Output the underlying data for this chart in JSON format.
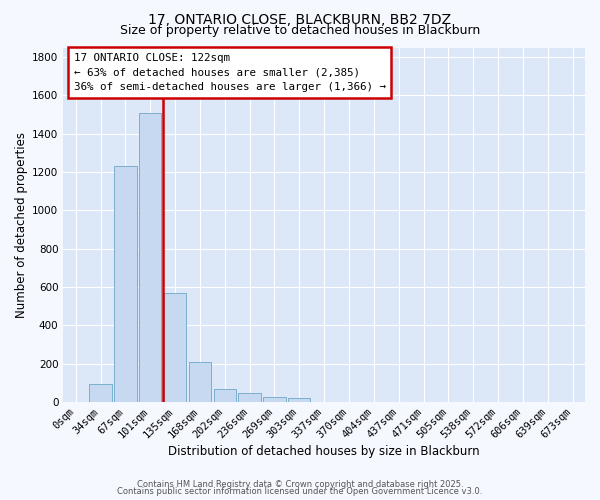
{
  "title": "17, ONTARIO CLOSE, BLACKBURN, BB2 7DZ",
  "subtitle": "Size of property relative to detached houses in Blackburn",
  "xlabel": "Distribution of detached houses by size in Blackburn",
  "ylabel": "Number of detached properties",
  "bar_labels": [
    "0sqm",
    "34sqm",
    "67sqm",
    "101sqm",
    "135sqm",
    "168sqm",
    "202sqm",
    "236sqm",
    "269sqm",
    "303sqm",
    "337sqm",
    "370sqm",
    "404sqm",
    "437sqm",
    "471sqm",
    "505sqm",
    "538sqm",
    "572sqm",
    "606sqm",
    "639sqm",
    "673sqm"
  ],
  "bar_values": [
    0,
    95,
    1230,
    1510,
    570,
    210,
    65,
    45,
    25,
    20,
    0,
    0,
    0,
    0,
    0,
    0,
    0,
    0,
    0,
    0,
    0
  ],
  "bar_color": "#c6d9f0",
  "bar_edge_color": "#7baece",
  "vline_color": "#cc0000",
  "ylim": [
    0,
    1850
  ],
  "yticks": [
    0,
    200,
    400,
    600,
    800,
    1000,
    1200,
    1400,
    1600,
    1800
  ],
  "annotation_title": "17 ONTARIO CLOSE: 122sqm",
  "annotation_line1": "← 63% of detached houses are smaller (2,385)",
  "annotation_line2": "36% of semi-detached houses are larger (1,366) →",
  "annotation_box_color": "#ffffff",
  "annotation_box_edge": "#cc0000",
  "footer_line1": "Contains HM Land Registry data © Crown copyright and database right 2025.",
  "footer_line2": "Contains public sector information licensed under the Open Government Licence v3.0.",
  "bg_color": "#dce8f8",
  "fig_bg_color": "#f5f8ff",
  "title_fontsize": 10,
  "subtitle_fontsize": 9,
  "xlabel_fontsize": 8.5,
  "ylabel_fontsize": 8.5,
  "tick_fontsize": 7.5,
  "footer_fontsize": 6.0
}
